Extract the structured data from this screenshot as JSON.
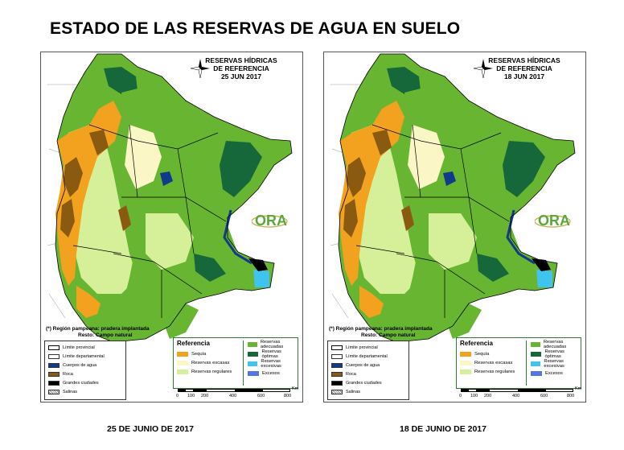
{
  "title": "ESTADO DE LAS RESERVAS DE AGUA EN SUELO",
  "colors": {
    "sequia": "#f2a21e",
    "escasas": "#fbf6c6",
    "regulares": "#d6f09a",
    "adecuadas": "#68b531",
    "optimas": "#16683a",
    "excesivas": "#3ec4ee",
    "excesos": "#5476e2",
    "roca": "#8a5a10",
    "agua": "#103a8a",
    "ciudades": "#000000"
  },
  "maps": [
    {
      "title_line1": "RESERVAS HÍDRICAS",
      "title_line2": "DE REFERENCIA",
      "date": "25 JUN 2017",
      "caption": "25 DE JUNIO DE 2017"
    },
    {
      "title_line1": "RESERVAS HÍDRICAS",
      "title_line2": "DE REFERENCIA",
      "date": "18 JUN 2017",
      "caption": "18 DE JUNIO DE 2017"
    }
  ],
  "note": {
    "line1": "(*) Región pampeana: pradera implantada",
    "line2": "Resto: Campo natural"
  },
  "legend_left": {
    "items": [
      "Límite provincial",
      "Límite departamental",
      "Cuerpos de agua",
      "Roca",
      "Grandes ciudades",
      "Salinas"
    ]
  },
  "legend_right": {
    "title": "Referencia",
    "col1": [
      "Sequía",
      "Reservas escasas",
      "Reservas regulares"
    ],
    "col2": [
      "Reservas adecuadas",
      "Reservas óptimas",
      "Reservas excesivas",
      "Excesos"
    ]
  },
  "scale": {
    "unit": "Km",
    "ticks": [
      "0",
      "100",
      "200",
      "400",
      "600",
      "800"
    ]
  },
  "logo": "ORA"
}
